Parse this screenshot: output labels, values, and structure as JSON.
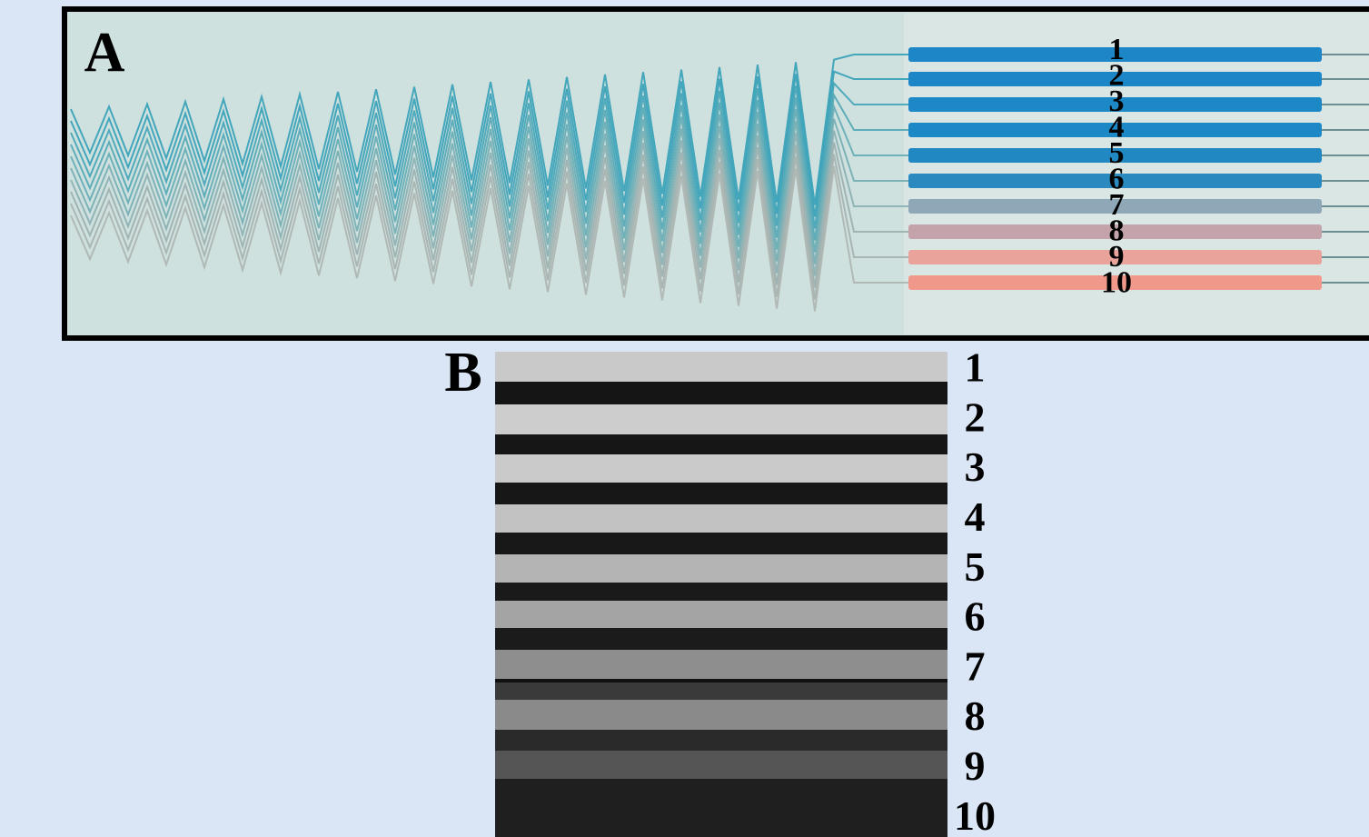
{
  "panel_a": {
    "label": "A",
    "channel_labels": [
      "1",
      "2",
      "3",
      "4",
      "5",
      "6",
      "7",
      "8",
      "9",
      "10"
    ]
  },
  "panel_b": {
    "label": "B",
    "channel_labels": [
      "1",
      "2",
      "3",
      "4",
      "5",
      "6",
      "7",
      "8",
      "9",
      "10"
    ]
  }
}
